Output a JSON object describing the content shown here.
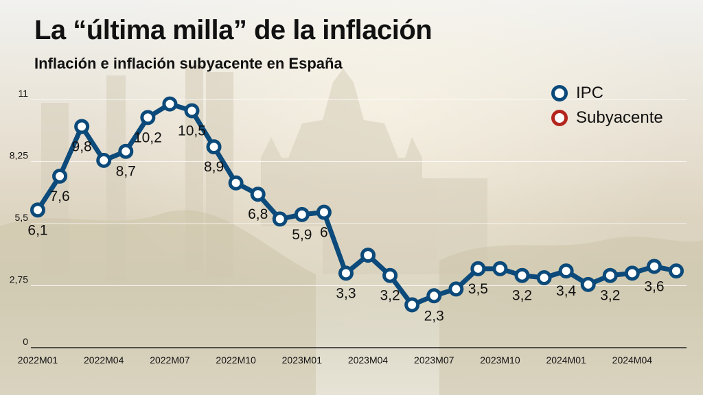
{
  "title": "La “última milla” de la inflación",
  "subtitle": "Inflación e inflación subyacente en España",
  "legend": [
    {
      "label": "IPC",
      "color": "#0b4a7a"
    },
    {
      "label": "Subyacente",
      "color": "#b3261e"
    }
  ],
  "chart_data": {
    "type": "line",
    "title": "La “última milla” de la inflación",
    "subtitle": "Inflación e inflación subyacente en España",
    "xlabel": "",
    "ylabel": "",
    "ylim": [
      0,
      11
    ],
    "grid": true,
    "legend_position": "top-right",
    "y_ticks": [
      0,
      2.75,
      5.5,
      8.25,
      11
    ],
    "y_tick_labels": [
      "0",
      "2,75",
      "5,5",
      "8,25",
      "11"
    ],
    "x_tick_labels": [
      "2022M01",
      "2022M04",
      "2022M07",
      "2022M10",
      "2023M01",
      "2023M04",
      "2023M07",
      "2023M10",
      "2024M01",
      "2024M04"
    ],
    "x_tick_every": 3,
    "categories": [
      "2022M01",
      "2022M02",
      "2022M03",
      "2022M04",
      "2022M05",
      "2022M06",
      "2022M07",
      "2022M08",
      "2022M09",
      "2022M10",
      "2022M11",
      "2022M12",
      "2023M01",
      "2023M02",
      "2023M03",
      "2023M04",
      "2023M05",
      "2023M06",
      "2023M07",
      "2023M08",
      "2023M09",
      "2023M10",
      "2023M11",
      "2023M12",
      "2024M01",
      "2024M02",
      "2024M03",
      "2024M04",
      "2024M05",
      "2024M06"
    ],
    "series": [
      {
        "name": "IPC",
        "color": "#0b4a7a",
        "values": [
          6.1,
          7.6,
          9.8,
          8.3,
          8.7,
          10.2,
          10.8,
          10.5,
          8.9,
          7.3,
          6.8,
          5.7,
          5.9,
          6.0,
          3.3,
          4.1,
          3.2,
          1.9,
          2.3,
          2.6,
          3.5,
          3.5,
          3.2,
          3.1,
          3.4,
          2.8,
          3.2,
          3.3,
          3.6,
          3.4
        ],
        "data_labels": [
          {
            "index": 0,
            "text": "6,1",
            "pos": "below"
          },
          {
            "index": 1,
            "text": "7,6",
            "pos": "below"
          },
          {
            "index": 2,
            "text": "9,8",
            "pos": "below"
          },
          {
            "index": 4,
            "text": "8,7",
            "pos": "below"
          },
          {
            "index": 5,
            "text": "10,2",
            "pos": "below"
          },
          {
            "index": 7,
            "text": "10,5",
            "pos": "below"
          },
          {
            "index": 8,
            "text": "8,9",
            "pos": "below"
          },
          {
            "index": 10,
            "text": "6,8",
            "pos": "below"
          },
          {
            "index": 12,
            "text": "5,9",
            "pos": "below"
          },
          {
            "index": 13,
            "text": "6",
            "pos": "below"
          },
          {
            "index": 14,
            "text": "3,3",
            "pos": "below"
          },
          {
            "index": 16,
            "text": "3,2",
            "pos": "below"
          },
          {
            "index": 18,
            "text": "2,3",
            "pos": "below"
          },
          {
            "index": 20,
            "text": "3,5",
            "pos": "below"
          },
          {
            "index": 22,
            "text": "3,2",
            "pos": "below"
          },
          {
            "index": 24,
            "text": "3,4",
            "pos": "below"
          },
          {
            "index": 26,
            "text": "3,2",
            "pos": "below"
          },
          {
            "index": 28,
            "text": "3,6",
            "pos": "below"
          }
        ]
      }
    ]
  }
}
